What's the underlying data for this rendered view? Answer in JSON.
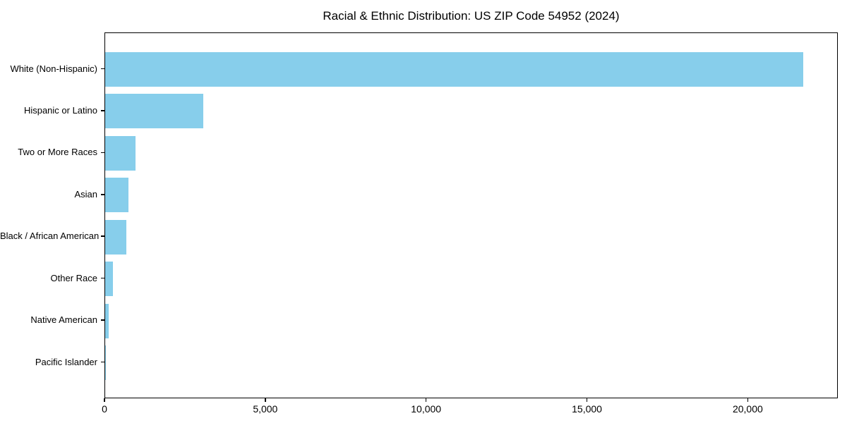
{
  "title": "Racial & Ethnic Distribution: US ZIP Code 54952 (2024)",
  "colors": {
    "bar": "#87CEEB",
    "spine": "#000000",
    "background": "#ffffff",
    "text": "#000000"
  },
  "chart_data": {
    "type": "bar",
    "orientation": "horizontal",
    "title": "Racial & Ethnic Distribution: US ZIP Code 54952 (2024)",
    "categories": [
      "White (Non-Hispanic)",
      "Hispanic or Latino",
      "Two or More Races",
      "Asian",
      "Black / African American",
      "Other Race",
      "Native American",
      "Pacific Islander"
    ],
    "values": [
      21700,
      3050,
      950,
      730,
      650,
      240,
      100,
      10
    ],
    "bar_color": "#87CEEB",
    "xlabel": "",
    "ylabel": "",
    "xlim": [
      0,
      22800
    ],
    "xticks": [
      0,
      5000,
      10000,
      15000,
      20000
    ],
    "xtick_labels": [
      "0",
      "5,000",
      "10,000",
      "15,000",
      "20,000"
    ],
    "grid": false,
    "legend": null,
    "sort_order": "descending"
  }
}
